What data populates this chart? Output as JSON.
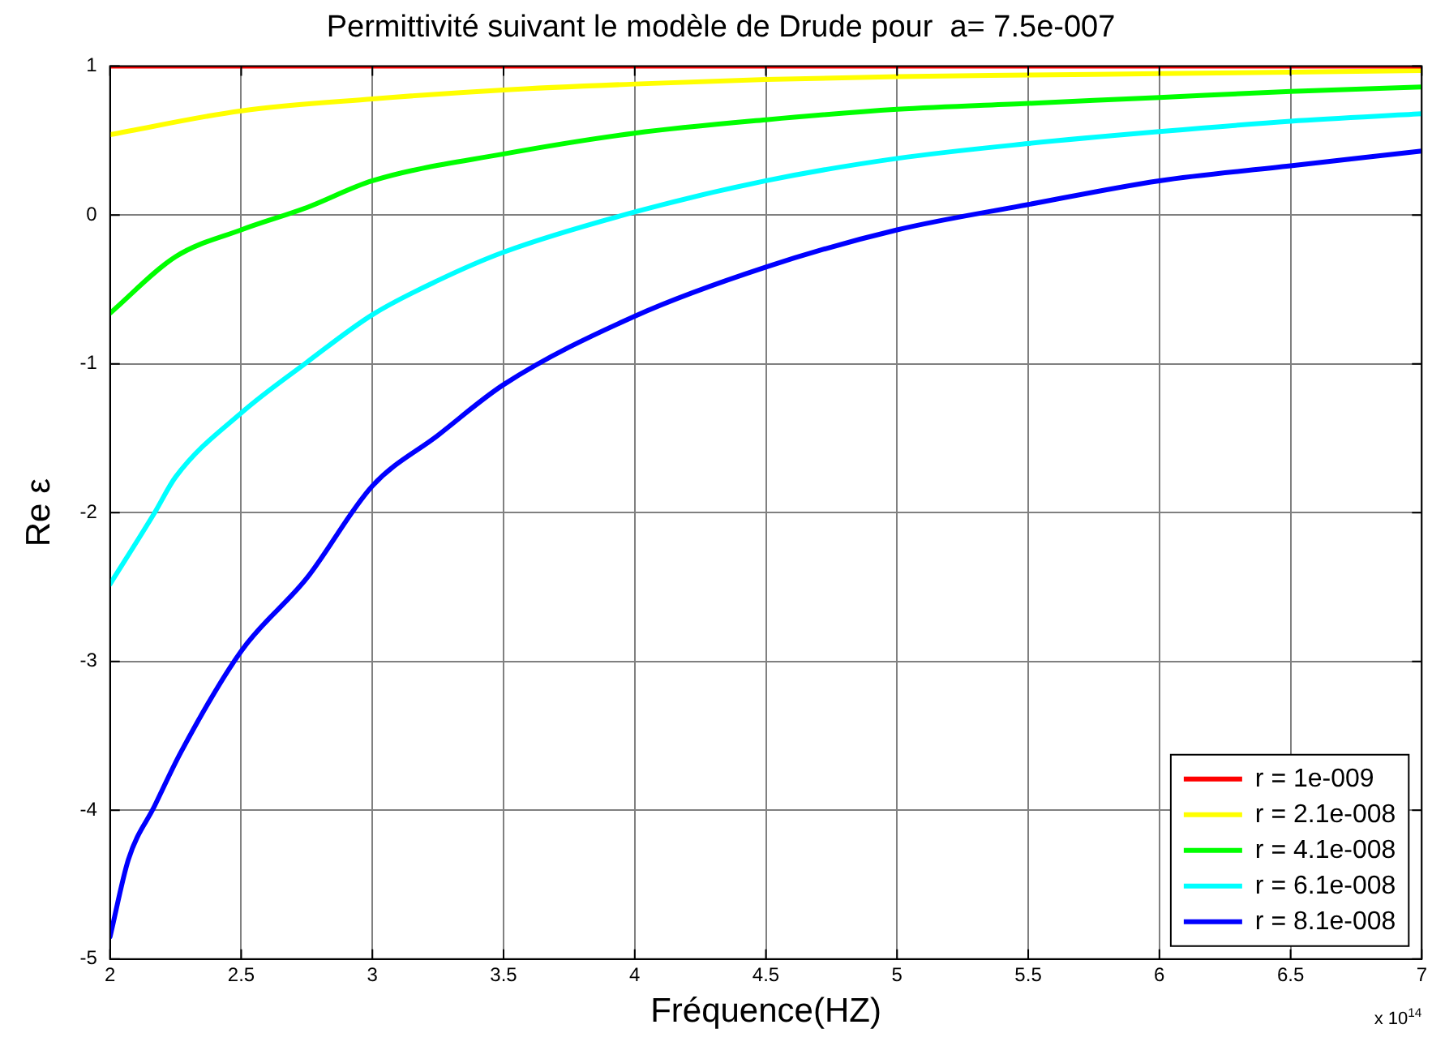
{
  "chart_data": {
    "type": "line",
    "title": "Permittivité suivant le modèle de Drude pour  a= 7.5e-007",
    "xlabel": "Fréquence(HZ)",
    "ylabel": "Re ε",
    "annotations": [
      "x 10$^{14}$"
    ],
    "xlim": [
      2,
      7
    ],
    "xticks": [
      2,
      2.5,
      3,
      3.5,
      4,
      4.5,
      5,
      5.5,
      6,
      6.5,
      7
    ],
    "ylim": [
      -5,
      1
    ],
    "yticks": [
      -5,
      -4,
      -3,
      -2,
      -1,
      0,
      1
    ],
    "grid": true,
    "legend": "bottom right",
    "marker": "none",
    "line_style": "solid",
    "series": [
      {
        "name": "r = 1e-009",
        "color": "#ff0000",
        "x": [
          2,
          7
        ],
        "values": [
          1,
          1
        ]
      },
      {
        "name": "r = 2.1e-008",
        "color": "#ffff00",
        "x": [
          2,
          2.5,
          3,
          3.5,
          4,
          4.5,
          5,
          5.5,
          6,
          6.5,
          7
        ],
        "values": [
          0.54,
          0.7,
          0.78,
          0.84,
          0.88,
          0.91,
          0.93,
          0.94,
          0.95,
          0.96,
          0.97
        ]
      },
      {
        "name": "r = 4.1e-008",
        "color": "#00ff00",
        "x": [
          2,
          2.25,
          2.5,
          2.75,
          3,
          3.5,
          4,
          4.5,
          5,
          5.5,
          6,
          6.5,
          7
        ],
        "values": [
          -0.66,
          -0.28,
          -0.1,
          0.05,
          0.23,
          0.41,
          0.55,
          0.64,
          0.71,
          0.75,
          0.79,
          0.83,
          0.86
        ]
      },
      {
        "name": "r = 6.1e-008",
        "color": "#00ffff",
        "x": [
          2,
          2.17,
          2.25,
          2.5,
          2.75,
          3,
          3.25,
          3.5,
          4,
          4.5,
          5,
          5.5,
          6,
          6.5,
          7
        ],
        "values": [
          -2.48,
          -2.0,
          -1.76,
          -1.33,
          -0.99,
          -0.67,
          -0.44,
          -0.25,
          0.02,
          0.23,
          0.38,
          0.48,
          0.56,
          0.63,
          0.68
        ]
      },
      {
        "name": "r = 8.1e-008",
        "color": "#0000ff",
        "x": [
          2,
          2.07,
          2.17,
          2.27,
          2.5,
          2.75,
          3,
          3.25,
          3.5,
          4,
          4.5,
          5,
          5.5,
          6,
          6.5,
          7
        ],
        "values": [
          -4.85,
          -4.33,
          -3.97,
          -3.61,
          -2.93,
          -2.44,
          -1.82,
          -1.48,
          -1.14,
          -0.68,
          -0.35,
          -0.1,
          0.07,
          0.23,
          0.33,
          0.43
        ]
      }
    ]
  }
}
